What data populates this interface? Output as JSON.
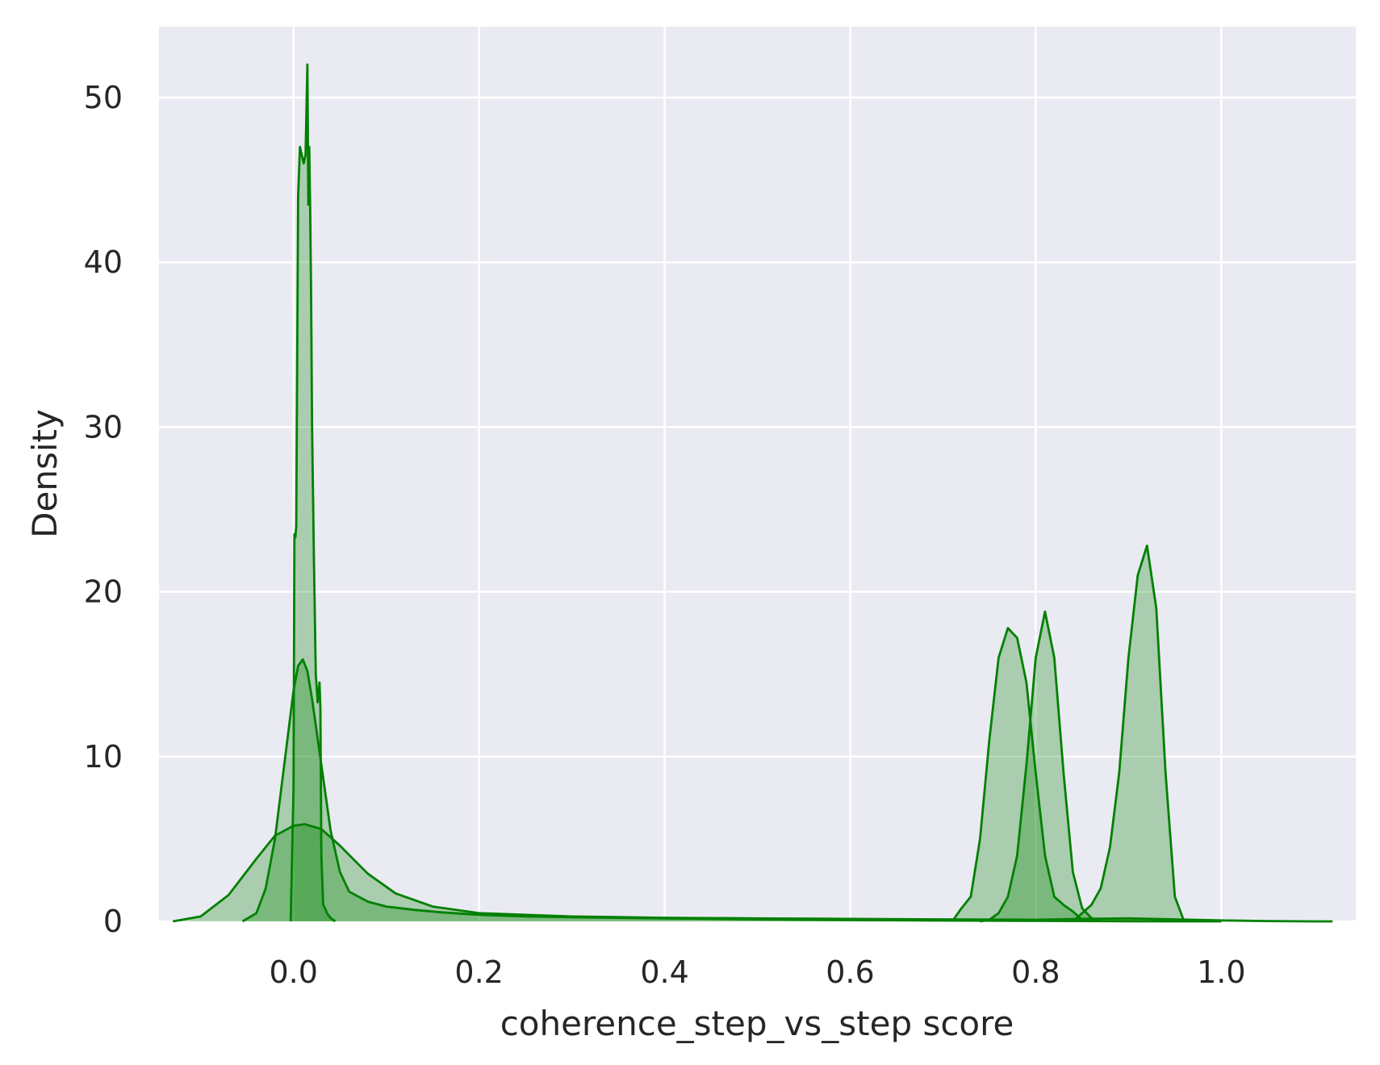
{
  "chart_data": {
    "type": "area",
    "subtype": "kde-density",
    "title": "",
    "xlabel": "coherence_step_vs_step score",
    "ylabel": "Density",
    "xlim": [
      -0.145,
      1.145
    ],
    "ylim": [
      0,
      54.3
    ],
    "xticks": [
      0.0,
      0.2,
      0.4,
      0.6,
      0.8,
      1.0
    ],
    "xtick_labels": [
      "0.0",
      "0.2",
      "0.4",
      "0.6",
      "0.8",
      "1.0"
    ],
    "yticks": [
      0,
      10,
      20,
      30,
      40,
      50
    ],
    "ytick_labels": [
      "0",
      "10",
      "20",
      "30",
      "40",
      "50"
    ],
    "grid": true,
    "legend": false,
    "style": {
      "background": "#eaeaf2",
      "grid_color": "#ffffff",
      "line_color": "#008000",
      "fill_opacity": 0.28
    },
    "series": [
      {
        "x": [
          -0.13,
          -0.1,
          -0.07,
          -0.04,
          -0.02,
          0.0,
          0.012,
          0.03,
          0.05,
          0.08,
          0.11,
          0.15,
          0.2,
          0.3,
          0.4,
          0.5,
          0.6,
          0.7,
          0.8,
          0.85,
          0.9,
          0.95,
          1.0,
          1.05,
          1.1,
          1.12
        ],
        "y": [
          0.0,
          0.3,
          1.6,
          3.8,
          5.2,
          5.8,
          5.9,
          5.6,
          4.6,
          2.9,
          1.7,
          0.9,
          0.5,
          0.3,
          0.22,
          0.18,
          0.15,
          0.12,
          0.1,
          0.15,
          0.18,
          0.12,
          0.06,
          0.02,
          0.0,
          0.0
        ]
      },
      {
        "x": [
          -0.055,
          -0.04,
          -0.03,
          -0.02,
          -0.01,
          0.0,
          0.005,
          0.01,
          0.015,
          0.02,
          0.03,
          0.04,
          0.05,
          0.06,
          0.08,
          0.1,
          0.13,
          0.16,
          0.2,
          0.25,
          0.3,
          0.4,
          0.5,
          0.6,
          0.7,
          0.8,
          0.9,
          0.95,
          1.0
        ],
        "y": [
          0.0,
          0.5,
          2.0,
          5.0,
          9.5,
          14.0,
          15.5,
          15.9,
          15.2,
          13.5,
          9.5,
          5.5,
          3.0,
          1.8,
          1.2,
          0.9,
          0.7,
          0.55,
          0.4,
          0.3,
          0.25,
          0.18,
          0.12,
          0.08,
          0.05,
          0.03,
          0.01,
          0.0,
          0.0
        ]
      },
      {
        "x": [
          -0.003,
          0.0,
          0.001,
          0.002,
          0.003,
          0.005,
          0.007,
          0.009,
          0.011,
          0.013,
          0.015,
          0.016,
          0.017,
          0.018,
          0.019,
          0.02,
          0.022,
          0.024,
          0.026,
          0.028,
          0.029,
          0.03,
          0.032,
          0.034,
          0.036,
          0.04,
          0.045
        ],
        "y": [
          0.0,
          8.0,
          23.5,
          23.3,
          24.0,
          44.0,
          47.0,
          46.5,
          46.0,
          46.5,
          52.0,
          43.5,
          47.0,
          43.0,
          38.0,
          30.0,
          22.0,
          15.0,
          13.3,
          14.5,
          13.0,
          4.0,
          1.0,
          0.8,
          0.5,
          0.2,
          0.0
        ]
      },
      {
        "x": [
          0.71,
          0.72,
          0.73,
          0.74,
          0.75,
          0.76,
          0.77,
          0.78,
          0.79,
          0.8,
          0.81,
          0.82,
          0.83,
          0.84,
          0.85,
          0.86
        ],
        "y": [
          0.0,
          0.8,
          1.5,
          5.0,
          11.0,
          16.0,
          17.8,
          17.2,
          14.5,
          9.0,
          4.0,
          1.5,
          1.0,
          0.6,
          0.1,
          0.0
        ]
      },
      {
        "x": [
          0.74,
          0.75,
          0.76,
          0.77,
          0.78,
          0.79,
          0.8,
          0.81,
          0.82,
          0.83,
          0.84,
          0.85,
          0.86,
          0.87
        ],
        "y": [
          0.0,
          0.1,
          0.5,
          1.5,
          4.0,
          9.5,
          16.0,
          18.8,
          16.0,
          9.0,
          3.0,
          0.8,
          0.2,
          0.0
        ]
      },
      {
        "x": [
          0.84,
          0.85,
          0.86,
          0.87,
          0.88,
          0.89,
          0.9,
          0.91,
          0.92,
          0.93,
          0.94,
          0.95,
          0.96
        ],
        "y": [
          0.0,
          0.5,
          1.0,
          2.0,
          4.5,
          9.0,
          16.0,
          21.0,
          22.8,
          19.0,
          9.0,
          1.5,
          0.0
        ]
      }
    ]
  }
}
